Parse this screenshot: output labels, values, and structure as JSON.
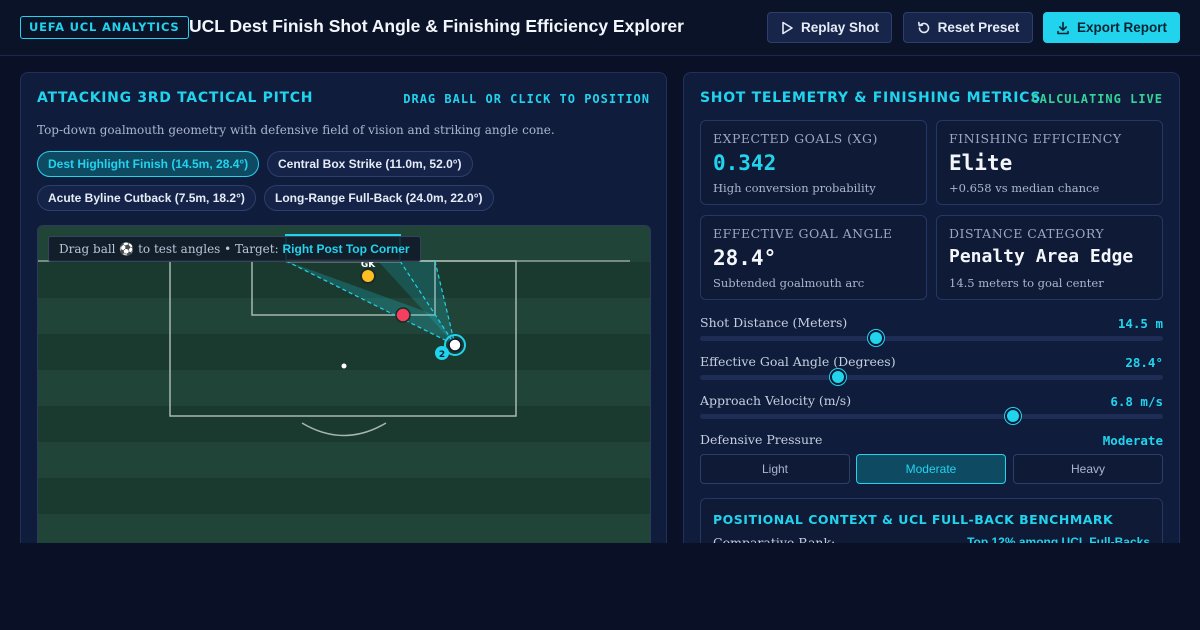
{
  "header": {
    "badge": "UEFA UCL ANALYTICS",
    "title": "UCL Dest Finish Shot Angle & Finishing Efficiency Explorer",
    "replay_label": "Replay Shot",
    "reset_label": "Reset Preset",
    "export_label": "Export Report"
  },
  "pitch_panel": {
    "title": "ATTACKING 3RD TACTICAL PITCH",
    "hint": "DRAG BALL OR CLICK TO POSITION",
    "subtitle": "Top-down goalmouth geometry with defensive field of vision and striking angle cone.",
    "presets": [
      {
        "label": "Dest Highlight Finish (14.5m, 28.4°)",
        "active": true
      },
      {
        "label": "Central Box Strike (11.0m, 52.0°)",
        "active": false
      },
      {
        "label": "Acute Byline Cutback (7.5m, 18.2°)",
        "active": false
      },
      {
        "label": "Long-Range Full-Back (24.0m, 22.0°)",
        "active": false
      }
    ],
    "tooltip_prefix": "Drag ball ⚽ to test angles • Target:",
    "tooltip_target": "Right Post Top Corner",
    "goalkeeper_label": "GK",
    "player_number": "2"
  },
  "metrics_panel": {
    "title": "SHOT TELEMETRY & FINISHING METRICS",
    "status": "CALCULATING LIVE",
    "cards": [
      {
        "label": "EXPECTED GOALS (XG)",
        "value": "0.342",
        "sub": "High conversion probability"
      },
      {
        "label": "FINISHING EFFICIENCY",
        "value": "Elite",
        "sub": "+0.658 vs median chance"
      },
      {
        "label": "EFFECTIVE GOAL ANGLE",
        "value": "28.4°",
        "sub": "Subtended goalmouth arc"
      },
      {
        "label": "DISTANCE CATEGORY",
        "value": "Penalty Area Edge",
        "sub": "14.5 meters to goal center"
      }
    ],
    "sliders": [
      {
        "label": "Shot Distance (Meters)",
        "value": "14.5 m",
        "fraction": 0.38
      },
      {
        "label": "Effective Goal Angle (Degrees)",
        "value": "28.4°",
        "fraction": 0.298
      },
      {
        "label": "Approach Velocity (m/s)",
        "value": "6.8 m/s",
        "fraction": 0.676
      }
    ],
    "pressure": {
      "label": "Defensive Pressure",
      "value": "Moderate",
      "options": [
        "Light",
        "Moderate",
        "Heavy"
      ],
      "selected": "Moderate"
    },
    "context": {
      "title": "POSITIONAL CONTEXT & UCL FULL-BACK BENCHMARK",
      "key": "Comparative Rank:",
      "value": "Top 12% among UCL Full-Backs"
    }
  },
  "colors": {
    "accent": "#22d3ee",
    "live": "#34d399",
    "goalkeeper": "#fbbf24",
    "defender": "#f43f5e",
    "pitch_dark": "#1a3a2f",
    "pitch_light": "#204538"
  },
  "icons": {
    "replay": "play-icon",
    "reset": "rotate-ccw-icon",
    "export": "download-icon"
  }
}
